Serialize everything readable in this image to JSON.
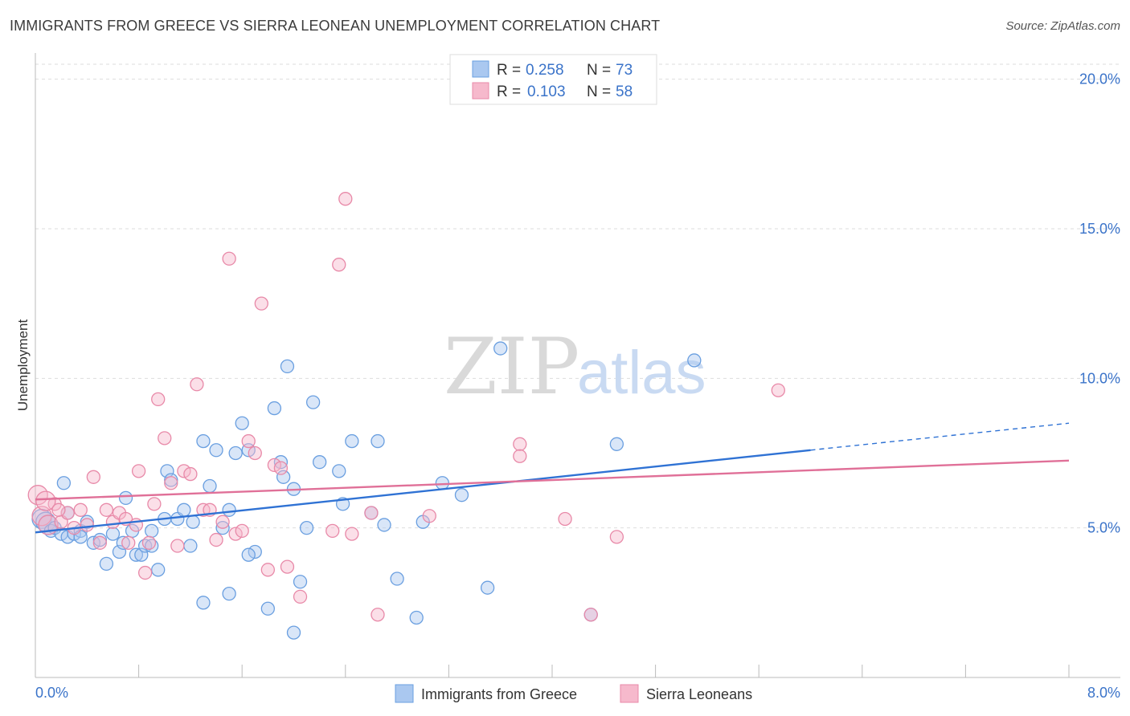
{
  "title": "IMMIGRANTS FROM GREECE VS SIERRA LEONEAN UNEMPLOYMENT CORRELATION CHART",
  "source": "Source: ZipAtlas.com",
  "watermark": {
    "zip": "ZIP",
    "atlas": "atlas"
  },
  "colors": {
    "blue_fill": "#aac8f0",
    "blue_stroke": "#6a9fe0",
    "blue_line": "#2f72d4",
    "pink_fill": "#f6b9cc",
    "pink_stroke": "#e889a8",
    "pink_line": "#e07098",
    "grid": "#dddddd",
    "axis": "#bbbbbb"
  },
  "chart_data": {
    "type": "scatter",
    "title": "IMMIGRANTS FROM GREECE VS SIERRA LEONEAN UNEMPLOYMENT CORRELATION CHART",
    "xlabel": "",
    "ylabel": "Unemployment",
    "xlim": [
      0,
      8
    ],
    "ylim": [
      0,
      20.5
    ],
    "x_tick_labels": {
      "min": "0.0%",
      "max": "8.0%"
    },
    "y_ticks": [
      {
        "value": 5,
        "label": "5.0%"
      },
      {
        "value": 10,
        "label": "10.0%"
      },
      {
        "value": 15,
        "label": "15.0%"
      },
      {
        "value": 20,
        "label": "20.0%"
      }
    ],
    "legend": {
      "position": "top-center",
      "entries": [
        {
          "r_label": "R =",
          "r": "0.258",
          "n_label": "N =",
          "n": "73"
        },
        {
          "r_label": "R =",
          "r": "0.103",
          "n_label": "N =",
          "n": "58"
        }
      ]
    },
    "series": [
      {
        "name": "Immigrants from Greece",
        "color": "blue",
        "trend": {
          "x0": 0,
          "y0": 4.85,
          "x1": 6.0,
          "y1": 7.6,
          "dash_to_x": 8.0,
          "dash_to_y": 8.5
        },
        "points": [
          [
            0.05,
            5.3
          ],
          [
            0.08,
            5.2
          ],
          [
            0.1,
            5.1
          ],
          [
            0.12,
            4.9
          ],
          [
            0.15,
            5.0
          ],
          [
            0.2,
            4.8
          ],
          [
            0.22,
            6.5
          ],
          [
            0.25,
            4.7
          ],
          [
            0.3,
            4.8
          ],
          [
            0.35,
            4.9
          ],
          [
            0.4,
            5.2
          ],
          [
            0.45,
            4.5
          ],
          [
            0.5,
            4.6
          ],
          [
            0.55,
            3.8
          ],
          [
            0.6,
            4.8
          ],
          [
            0.65,
            4.2
          ],
          [
            0.68,
            4.5
          ],
          [
            0.7,
            6.0
          ],
          [
            0.75,
            4.9
          ],
          [
            0.78,
            4.1
          ],
          [
            0.82,
            4.1
          ],
          [
            0.85,
            4.4
          ],
          [
            0.9,
            4.4
          ],
          [
            0.95,
            3.6
          ],
          [
            1.0,
            5.3
          ],
          [
            1.02,
            6.9
          ],
          [
            1.05,
            6.6
          ],
          [
            1.1,
            5.3
          ],
          [
            1.15,
            5.6
          ],
          [
            1.2,
            4.4
          ],
          [
            1.22,
            5.2
          ],
          [
            1.3,
            7.9
          ],
          [
            1.3,
            2.5
          ],
          [
            1.35,
            6.4
          ],
          [
            1.4,
            7.6
          ],
          [
            1.45,
            5.0
          ],
          [
            1.5,
            2.8
          ],
          [
            1.5,
            5.6
          ],
          [
            1.55,
            7.5
          ],
          [
            1.6,
            8.5
          ],
          [
            1.65,
            7.6
          ],
          [
            1.7,
            4.2
          ],
          [
            1.65,
            4.1
          ],
          [
            1.8,
            2.3
          ],
          [
            1.85,
            9.0
          ],
          [
            1.9,
            7.2
          ],
          [
            1.92,
            6.7
          ],
          [
            1.95,
            10.4
          ],
          [
            2.0,
            6.3
          ],
          [
            2.05,
            3.2
          ],
          [
            2.0,
            1.5
          ],
          [
            2.1,
            5.0
          ],
          [
            2.15,
            9.2
          ],
          [
            2.2,
            7.2
          ],
          [
            2.35,
            6.9
          ],
          [
            2.38,
            5.8
          ],
          [
            2.45,
            7.9
          ],
          [
            2.6,
            5.5
          ],
          [
            2.65,
            7.9
          ],
          [
            2.7,
            5.1
          ],
          [
            2.8,
            3.3
          ],
          [
            2.95,
            2.0
          ],
          [
            3.0,
            5.2
          ],
          [
            3.15,
            6.5
          ],
          [
            3.3,
            6.1
          ],
          [
            3.5,
            3.0
          ],
          [
            3.6,
            11.0
          ],
          [
            4.3,
            2.1
          ],
          [
            4.5,
            7.8
          ],
          [
            5.1,
            10.6
          ],
          [
            0.35,
            4.7
          ],
          [
            0.9,
            4.9
          ],
          [
            0.25,
            5.5
          ]
        ]
      },
      {
        "name": "Sierra Leoneans",
        "color": "pink",
        "trend": {
          "x0": 0,
          "y0": 5.95,
          "x1": 8.0,
          "y1": 7.25
        },
        "points": [
          [
            0.02,
            6.1
          ],
          [
            0.05,
            5.4
          ],
          [
            0.1,
            5.1
          ],
          [
            0.15,
            5.8
          ],
          [
            0.2,
            5.2
          ],
          [
            0.25,
            5.5
          ],
          [
            0.3,
            5.0
          ],
          [
            0.35,
            5.6
          ],
          [
            0.4,
            5.1
          ],
          [
            0.45,
            6.7
          ],
          [
            0.5,
            4.5
          ],
          [
            0.55,
            5.6
          ],
          [
            0.6,
            5.2
          ],
          [
            0.65,
            5.5
          ],
          [
            0.7,
            5.3
          ],
          [
            0.72,
            4.5
          ],
          [
            0.78,
            5.1
          ],
          [
            0.8,
            6.9
          ],
          [
            0.85,
            3.5
          ],
          [
            0.88,
            4.5
          ],
          [
            0.92,
            5.8
          ],
          [
            0.95,
            9.3
          ],
          [
            1.0,
            8.0
          ],
          [
            1.05,
            6.5
          ],
          [
            1.1,
            4.4
          ],
          [
            1.15,
            6.9
          ],
          [
            1.2,
            6.8
          ],
          [
            1.25,
            9.8
          ],
          [
            1.3,
            5.6
          ],
          [
            1.35,
            5.6
          ],
          [
            1.4,
            4.6
          ],
          [
            1.45,
            5.2
          ],
          [
            1.5,
            14.0
          ],
          [
            1.55,
            4.8
          ],
          [
            1.6,
            4.9
          ],
          [
            1.65,
            7.9
          ],
          [
            1.7,
            7.5
          ],
          [
            1.75,
            12.5
          ],
          [
            1.8,
            3.6
          ],
          [
            1.85,
            7.1
          ],
          [
            1.9,
            7.0
          ],
          [
            1.95,
            3.7
          ],
          [
            2.05,
            2.7
          ],
          [
            2.3,
            4.9
          ],
          [
            2.35,
            13.8
          ],
          [
            2.4,
            16.0
          ],
          [
            2.45,
            4.8
          ],
          [
            2.6,
            5.5
          ],
          [
            2.65,
            2.1
          ],
          [
            3.05,
            5.4
          ],
          [
            3.75,
            7.8
          ],
          [
            3.75,
            7.4
          ],
          [
            4.1,
            5.3
          ],
          [
            4.3,
            2.1
          ],
          [
            4.5,
            4.7
          ],
          [
            5.75,
            9.6
          ],
          [
            0.08,
            5.9
          ],
          [
            0.18,
            5.6
          ]
        ]
      }
    ]
  },
  "bottom_legend": [
    "Immigrants from Greece",
    "Sierra Leoneans"
  ]
}
